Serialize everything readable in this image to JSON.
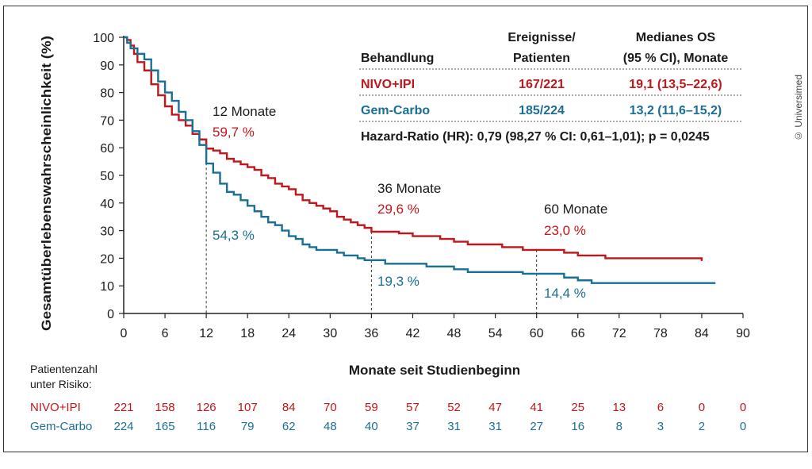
{
  "copyright": "© Universimed",
  "colors": {
    "nivo": "#c0161c",
    "gem": "#1a6f96",
    "text": "#1a1a1a",
    "axis": "#222222"
  },
  "chart_data": {
    "type": "line",
    "title": "",
    "xlabel": "Monate seit Studienbeginn",
    "ylabel": "Gesamtüberlebenswahrscheinlichkeit (%)",
    "xlim": [
      0,
      90
    ],
    "ylim": [
      0,
      100
    ],
    "x_ticks": [
      0,
      6,
      12,
      18,
      24,
      30,
      36,
      42,
      48,
      54,
      60,
      66,
      72,
      78,
      84,
      90
    ],
    "y_ticks": [
      0,
      10,
      20,
      30,
      40,
      50,
      60,
      70,
      80,
      90,
      100
    ],
    "grid": false,
    "series": [
      {
        "name": "NIVO+IPI",
        "color": "#c0161c",
        "points": [
          [
            0,
            100
          ],
          [
            0.5,
            99
          ],
          [
            1,
            97
          ],
          [
            1.5,
            94
          ],
          [
            2,
            91
          ],
          [
            3,
            88
          ],
          [
            4,
            83
          ],
          [
            5,
            79
          ],
          [
            6,
            75
          ],
          [
            7,
            72
          ],
          [
            8,
            70
          ],
          [
            9,
            68
          ],
          [
            10,
            65
          ],
          [
            11,
            63
          ],
          [
            12,
            59.7
          ],
          [
            13,
            59
          ],
          [
            14,
            58
          ],
          [
            15,
            56
          ],
          [
            16,
            55
          ],
          [
            17,
            54
          ],
          [
            18,
            53
          ],
          [
            19,
            52
          ],
          [
            20,
            50
          ],
          [
            21,
            49
          ],
          [
            22,
            47
          ],
          [
            23,
            46
          ],
          [
            24,
            45
          ],
          [
            25,
            43
          ],
          [
            26,
            41
          ],
          [
            27,
            40
          ],
          [
            28,
            39
          ],
          [
            29,
            38
          ],
          [
            30,
            37
          ],
          [
            31,
            35
          ],
          [
            32,
            34
          ],
          [
            33,
            33
          ],
          [
            34,
            32
          ],
          [
            35,
            31
          ],
          [
            36,
            29.6
          ],
          [
            40,
            29
          ],
          [
            42,
            28
          ],
          [
            46,
            27
          ],
          [
            48,
            26
          ],
          [
            50,
            25
          ],
          [
            55,
            24
          ],
          [
            58,
            23
          ],
          [
            60,
            23
          ],
          [
            64,
            22
          ],
          [
            66,
            21
          ],
          [
            70,
            20
          ],
          [
            75,
            20
          ],
          [
            84,
            19
          ]
        ]
      },
      {
        "name": "Gem-Carbo",
        "color": "#1a6f96",
        "points": [
          [
            0,
            100
          ],
          [
            0.5,
            98
          ],
          [
            1,
            96
          ],
          [
            2,
            94
          ],
          [
            3,
            92
          ],
          [
            4,
            88
          ],
          [
            5,
            84
          ],
          [
            6,
            80
          ],
          [
            7,
            77
          ],
          [
            8,
            73
          ],
          [
            9,
            70
          ],
          [
            10,
            66
          ],
          [
            11,
            61
          ],
          [
            12,
            54.3
          ],
          [
            13,
            51
          ],
          [
            14,
            47
          ],
          [
            15,
            44
          ],
          [
            16,
            43
          ],
          [
            17,
            41
          ],
          [
            18,
            39
          ],
          [
            19,
            37
          ],
          [
            20,
            35
          ],
          [
            21,
            33
          ],
          [
            22,
            32
          ],
          [
            23,
            30
          ],
          [
            24,
            28
          ],
          [
            25,
            27
          ],
          [
            26,
            25
          ],
          [
            27,
            24
          ],
          [
            28,
            23
          ],
          [
            30,
            23
          ],
          [
            31,
            22
          ],
          [
            32,
            21
          ],
          [
            33,
            21
          ],
          [
            34,
            20
          ],
          [
            35,
            19.3
          ],
          [
            36,
            19.3
          ],
          [
            38,
            18
          ],
          [
            40,
            18
          ],
          [
            44,
            17
          ],
          [
            48,
            16
          ],
          [
            50,
            15
          ],
          [
            54,
            15
          ],
          [
            58,
            14.4
          ],
          [
            60,
            14.4
          ],
          [
            64,
            13
          ],
          [
            66,
            12
          ],
          [
            68,
            11
          ],
          [
            80,
            11
          ],
          [
            86,
            11
          ]
        ]
      }
    ],
    "annotations": [
      {
        "label": "12 Monate",
        "x": 12,
        "values": [
          {
            "text": "59,7 %",
            "series": "NIVO+IPI",
            "value": 59.7
          },
          {
            "text": "54,3 %",
            "series": "Gem-Carbo",
            "value": 54.3
          }
        ]
      },
      {
        "label": "36 Monate",
        "x": 36,
        "values": [
          {
            "text": "29,6 %",
            "series": "NIVO+IPI",
            "value": 29.6
          },
          {
            "text": "19,3 %",
            "series": "Gem-Carbo",
            "value": 19.3
          }
        ]
      },
      {
        "label": "60 Monate",
        "x": 60,
        "values": [
          {
            "text": "23,0 %",
            "series": "NIVO+IPI",
            "value": 23.0
          },
          {
            "text": "14,4 %",
            "series": "Gem-Carbo",
            "value": 14.4
          }
        ]
      }
    ],
    "summary_table": {
      "header": {
        "behandlung": "Behandlung",
        "ereignisse_1": "Ereignisse/",
        "ereignisse_2": "Patienten",
        "os_1": "Medianes OS",
        "os_2": "(95 % CI), Monate"
      },
      "rows": [
        {
          "name": "NIVO+IPI",
          "events": "167/221",
          "os": "19,1 (13,5–22,6)"
        },
        {
          "name": "Gem-Carbo",
          "events": "185/224",
          "os": "13,2 (11,6–15,2)"
        }
      ],
      "hazard": "Hazard-Ratio (HR): 0,79 (98,27 % CI: 0,61–1,01); p = 0,0245"
    },
    "risk_table": {
      "title_1": "Patientenzahl",
      "title_2": "unter Risiko:",
      "rows": [
        {
          "name": "NIVO+IPI",
          "values": [
            "221",
            "158",
            "126",
            "107",
            "84",
            "70",
            "59",
            "57",
            "52",
            "47",
            "41",
            "25",
            "13",
            "6",
            "0",
            "0"
          ]
        },
        {
          "name": "Gem-Carbo",
          "values": [
            "224",
            "165",
            "116",
            "79",
            "62",
            "48",
            "40",
            "37",
            "31",
            "31",
            "27",
            "16",
            "8",
            "3",
            "2",
            "0"
          ]
        }
      ]
    }
  }
}
